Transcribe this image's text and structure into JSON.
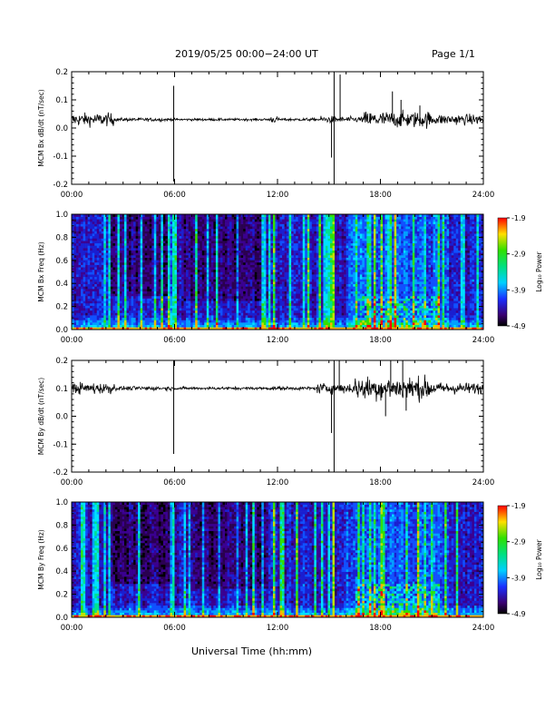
{
  "header": {
    "date_range": "2019/05/25  00:00−24:00 UT",
    "page": "Page 1/1"
  },
  "xlabel": "Universal Time (hh:mm)",
  "chart_data": [
    {
      "type": "line",
      "ylabel": "MCM Bx dB/dt (nT/sec)",
      "xlim": [
        0,
        24
      ],
      "ylim": [
        -0.2,
        0.2
      ],
      "x_ticks": [
        "00:00",
        "06:00",
        "12:00",
        "18:00",
        "24:00"
      ],
      "y_ticks": [
        "-0.2",
        "-0.1",
        "0.0",
        "0.1",
        "0.2"
      ],
      "baseline": 0.03,
      "noise_segments": [
        [
          0,
          2.5,
          0.022
        ],
        [
          2.5,
          5.8,
          0.006
        ],
        [
          5.8,
          11.5,
          0.004
        ],
        [
          11.5,
          12.0,
          0.012
        ],
        [
          12.0,
          14.5,
          0.005
        ],
        [
          14.5,
          15.6,
          0.012
        ],
        [
          15.6,
          17.0,
          0.01
        ],
        [
          17.0,
          21.0,
          0.028
        ],
        [
          21.0,
          24.0,
          0.018
        ]
      ],
      "spikes": [
        [
          5.95,
          -0.19
        ],
        [
          5.95,
          0.15
        ],
        [
          15.15,
          -0.105
        ],
        [
          15.3,
          0.2
        ],
        [
          15.3,
          -0.2
        ],
        [
          15.65,
          0.19
        ],
        [
          18.7,
          0.13
        ],
        [
          19.2,
          0.1
        ],
        [
          20.3,
          0.08
        ]
      ],
      "color": "#000000"
    },
    {
      "type": "heatmap",
      "ylabel": "MCM Bx Freq (Hz)",
      "xlim": [
        0,
        24
      ],
      "ylim": [
        0.0,
        1.0
      ],
      "x_ticks": [
        "00:00",
        "06:00",
        "12:00",
        "18:00",
        "24:00"
      ],
      "y_ticks": [
        "0.0",
        "0.2",
        "0.4",
        "0.6",
        "0.8",
        "1.0"
      ],
      "colorbar": {
        "label": "Log₁₀ Power",
        "range": [
          -4.9,
          -1.9
        ],
        "ticks": [
          "-1.9",
          "-2.9",
          "-3.9",
          "-4.9"
        ]
      },
      "broadband_lines": [
        5.95,
        15.3
      ],
      "enhanced_low_freq_hours": [
        16.5,
        21.5
      ]
    },
    {
      "type": "line",
      "ylabel": "MCM By dB/dt (nT/sec)",
      "xlim": [
        0,
        24
      ],
      "ylim": [
        -0.2,
        0.2
      ],
      "x_ticks": [
        "00:00",
        "06:00",
        "12:00",
        "18:00",
        "24:00"
      ],
      "y_ticks": [
        "-0.2",
        "-0.1",
        "0.0",
        "0.1",
        "0.2"
      ],
      "baseline": 0.1,
      "noise_segments": [
        [
          0,
          2.5,
          0.02
        ],
        [
          2.5,
          5.8,
          0.007
        ],
        [
          5.8,
          11.5,
          0.005
        ],
        [
          11.5,
          14.3,
          0.006
        ],
        [
          14.3,
          16.5,
          0.018
        ],
        [
          16.5,
          21.0,
          0.04
        ],
        [
          21.0,
          24.0,
          0.02
        ]
      ],
      "spikes": [
        [
          5.95,
          -0.135
        ],
        [
          5.95,
          0.2
        ],
        [
          15.15,
          -0.06
        ],
        [
          15.3,
          0.2
        ],
        [
          15.3,
          -0.2
        ],
        [
          15.6,
          0.2
        ],
        [
          18.6,
          0.2
        ],
        [
          18.3,
          0.0
        ],
        [
          19.3,
          0.2
        ],
        [
          19.5,
          0.02
        ]
      ],
      "color": "#000000"
    },
    {
      "type": "heatmap",
      "ylabel": "MCM By Freq (Hz)",
      "xlim": [
        0,
        24
      ],
      "ylim": [
        0.0,
        1.0
      ],
      "x_ticks": [
        "00:00",
        "06:00",
        "12:00",
        "18:00",
        "24:00"
      ],
      "y_ticks": [
        "0.0",
        "0.2",
        "0.4",
        "0.6",
        "0.8",
        "1.0"
      ],
      "colorbar": {
        "label": "Log₁₀ Power",
        "range": [
          -4.9,
          -1.9
        ],
        "ticks": [
          "-1.9",
          "-2.9",
          "-3.9",
          "-4.9"
        ]
      },
      "broadband_lines": [
        5.95,
        15.3
      ],
      "enhanced_low_freq_hours": [
        16.5,
        21.5
      ]
    }
  ]
}
